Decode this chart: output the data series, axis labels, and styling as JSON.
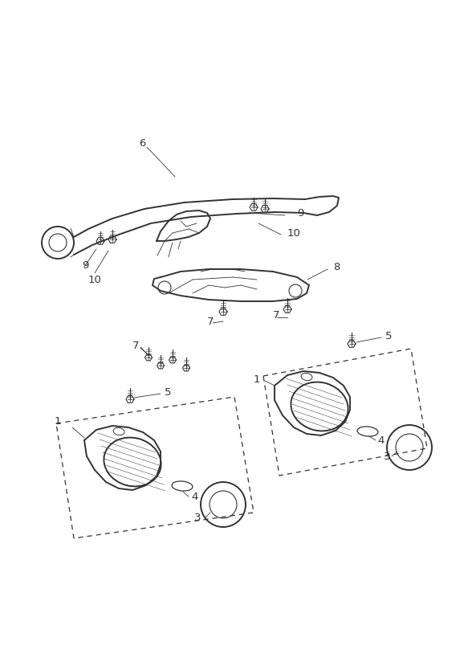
{
  "bg_color": "#ffffff",
  "line_color": "#333333",
  "figsize": [
    5.83,
    8.24
  ],
  "dpi": 100,
  "font_size": 9.5,
  "lw_main": 1.4,
  "lw_thin": 0.8,
  "lw_label": 0.6
}
